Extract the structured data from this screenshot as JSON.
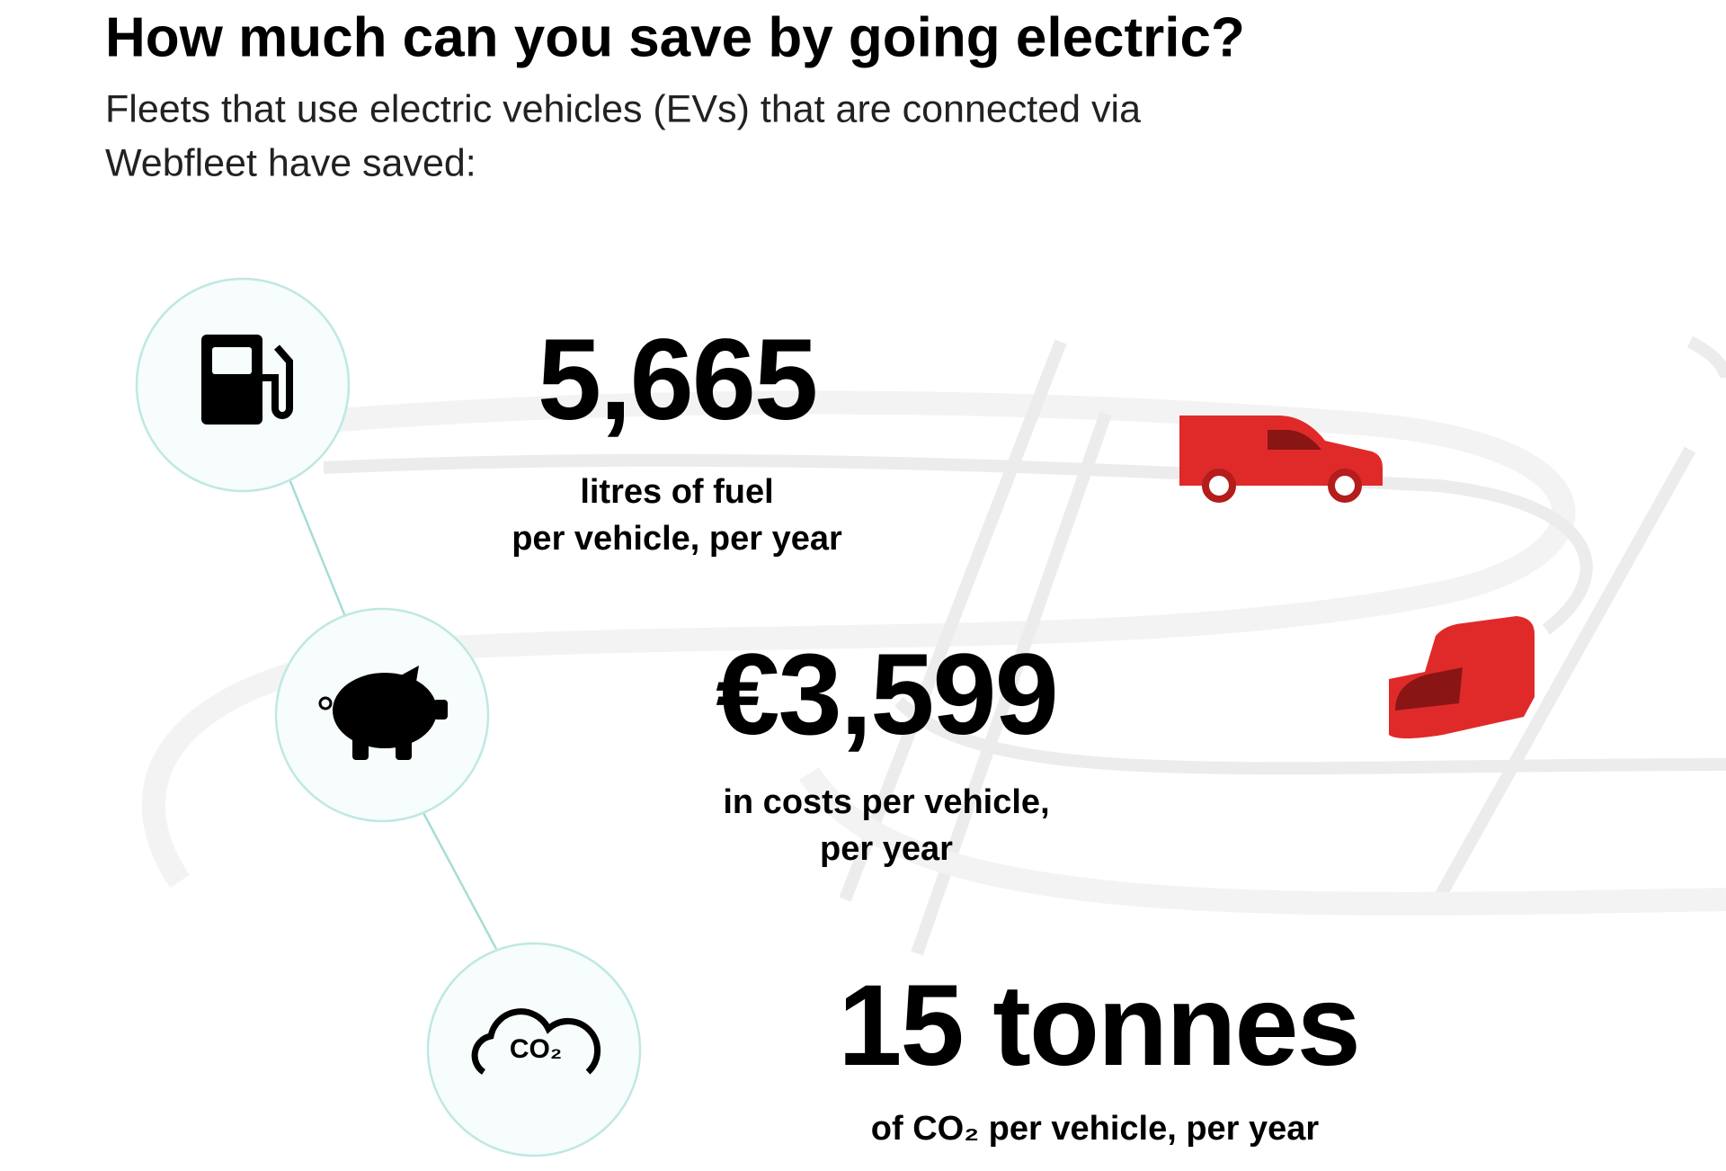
{
  "header": {
    "title": "How much can you save by going electric?",
    "subtitle_lines": [
      "Fleets that use electric vehicles (EVs) that are connected via",
      "Webfleet have saved:"
    ]
  },
  "stats": [
    {
      "value": "5,665",
      "caption_lines": [
        "litres of fuel",
        "per vehicle, per year"
      ]
    },
    {
      "value": "€3,599",
      "caption_lines": [
        "in costs per vehicle,",
        "per year"
      ]
    },
    {
      "value": "15 tonnes",
      "caption_lines": [
        "of CO₂ per vehicle, per year"
      ],
      "icon_label": "CO₂"
    }
  ]
}
